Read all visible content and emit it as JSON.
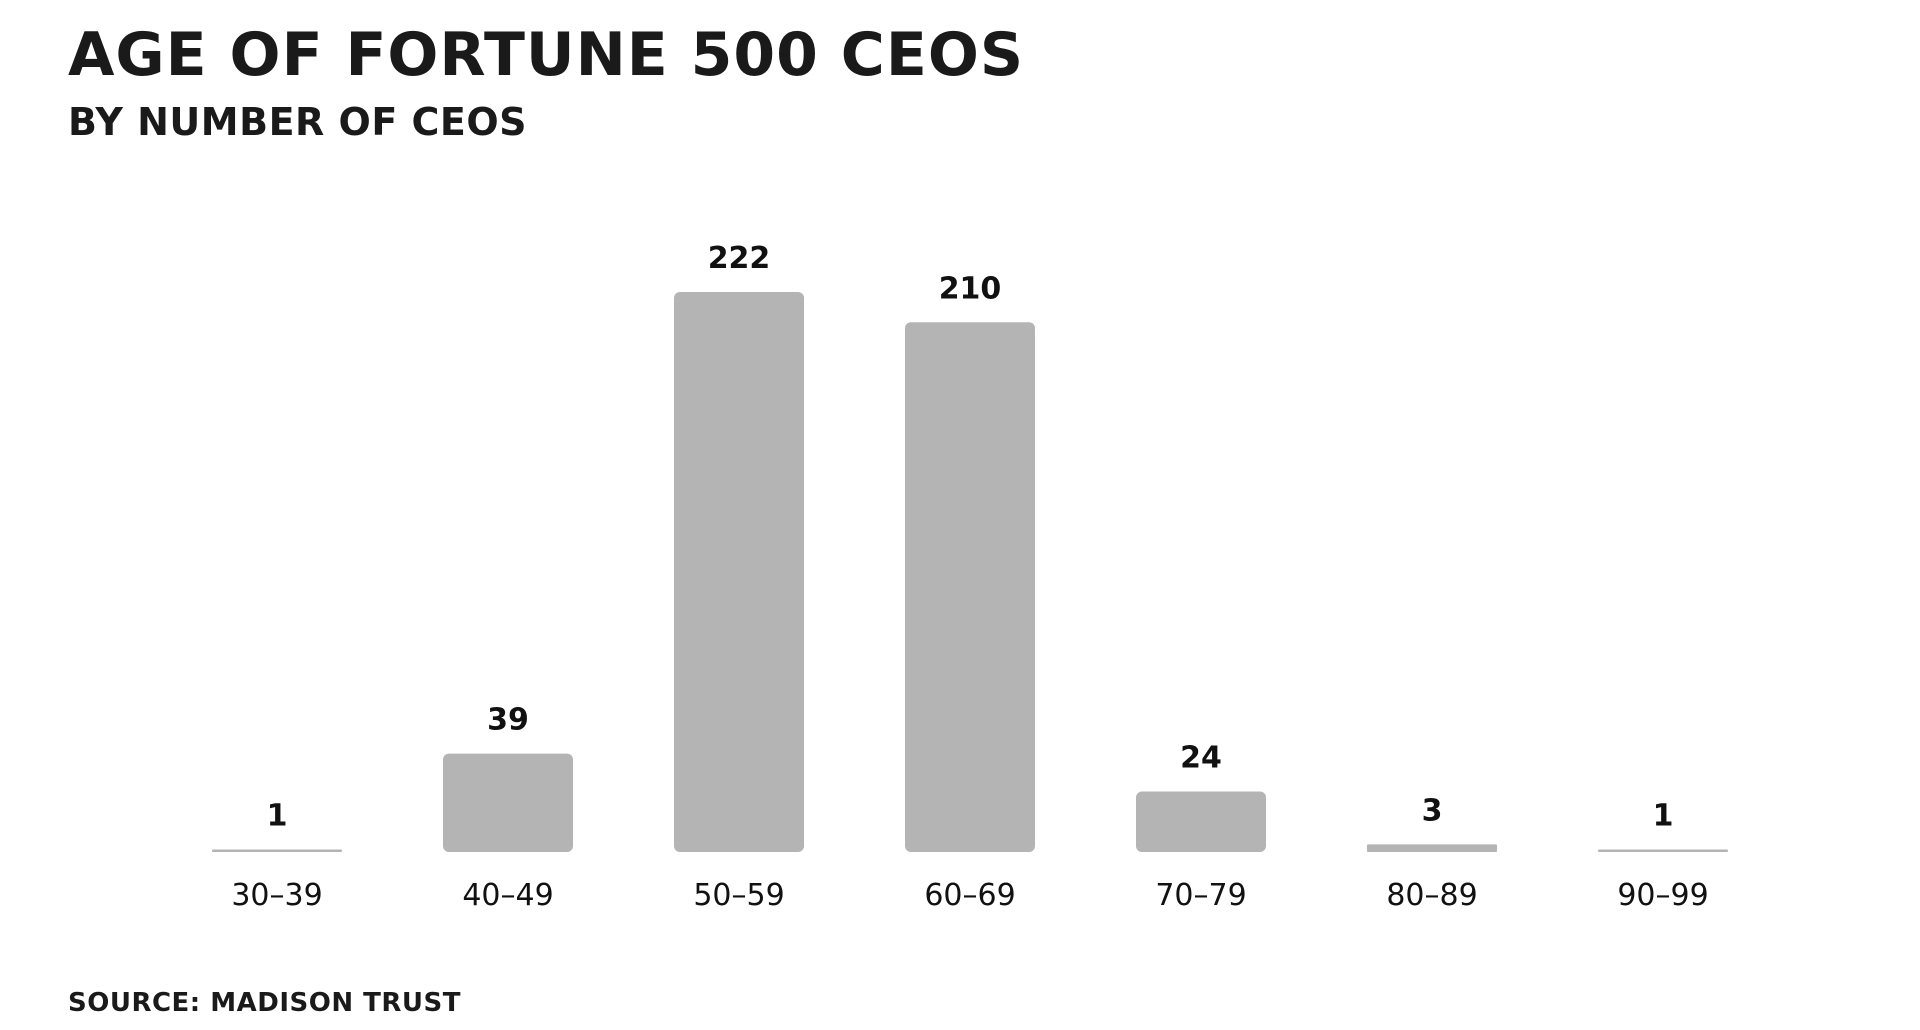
{
  "chart_data": {
    "type": "bar",
    "title": "AGE OF FORTUNE 500 CEOS",
    "subtitle": "BY NUMBER OF CEOS",
    "source": "SOURCE: MADISON TRUST",
    "categories": [
      "30–39",
      "40–49",
      "50–59",
      "60–69",
      "70–79",
      "80–89",
      "90–99"
    ],
    "values": [
      1,
      39,
      222,
      210,
      24,
      3,
      1
    ],
    "value_labels": [
      "1",
      "39",
      "222",
      "210",
      "24",
      "3",
      "1"
    ],
    "xlabel": "",
    "ylabel": "",
    "ylim": [
      0,
      222
    ],
    "grid": false,
    "legend": "none",
    "bar_color": "#b5b4b5",
    "text_color": "#111111"
  }
}
